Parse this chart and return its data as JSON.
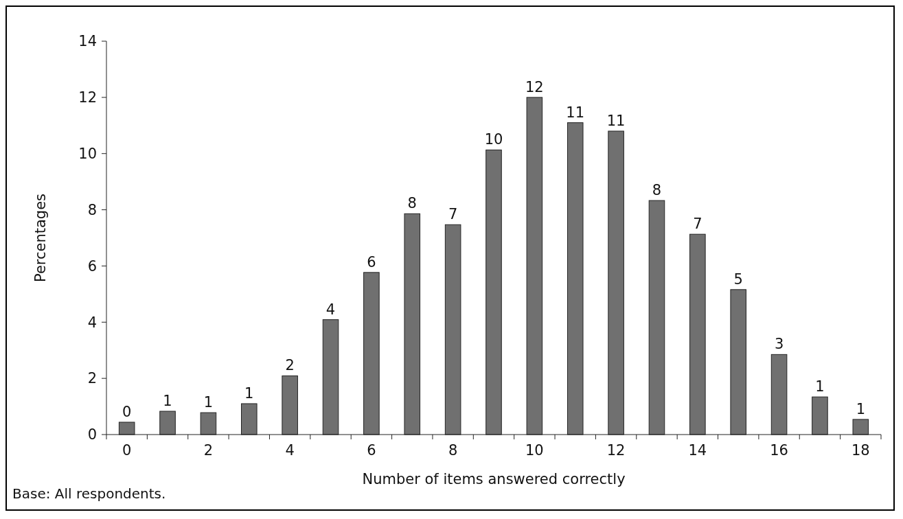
{
  "chart_data": {
    "type": "bar",
    "xlabel": "Number of items answered correctly",
    "ylabel": "Percentages",
    "categories": [
      "0",
      null,
      "2",
      null,
      "4",
      null,
      "6",
      null,
      "8",
      null,
      "10",
      null,
      "12",
      null,
      "14",
      null,
      "16",
      null,
      "18"
    ],
    "values": [
      0.44,
      0.83,
      0.78,
      1.1,
      2.09,
      4.09,
      5.77,
      7.86,
      7.47,
      10.13,
      12.0,
      11.1,
      10.8,
      8.33,
      7.13,
      5.16,
      2.85,
      1.34,
      0.54
    ],
    "value_labels": [
      "0",
      "1",
      "1",
      "1",
      "2",
      "4",
      "6",
      "8",
      "7",
      "10",
      "12",
      "11",
      "11",
      "8",
      "7",
      "5",
      "3",
      "1",
      "1"
    ],
    "color": "#707070",
    "ylim": [
      0,
      14
    ],
    "yticks": [
      0,
      2,
      4,
      6,
      8,
      10,
      12,
      14
    ],
    "annotations": [
      "Base: All respondents."
    ]
  }
}
